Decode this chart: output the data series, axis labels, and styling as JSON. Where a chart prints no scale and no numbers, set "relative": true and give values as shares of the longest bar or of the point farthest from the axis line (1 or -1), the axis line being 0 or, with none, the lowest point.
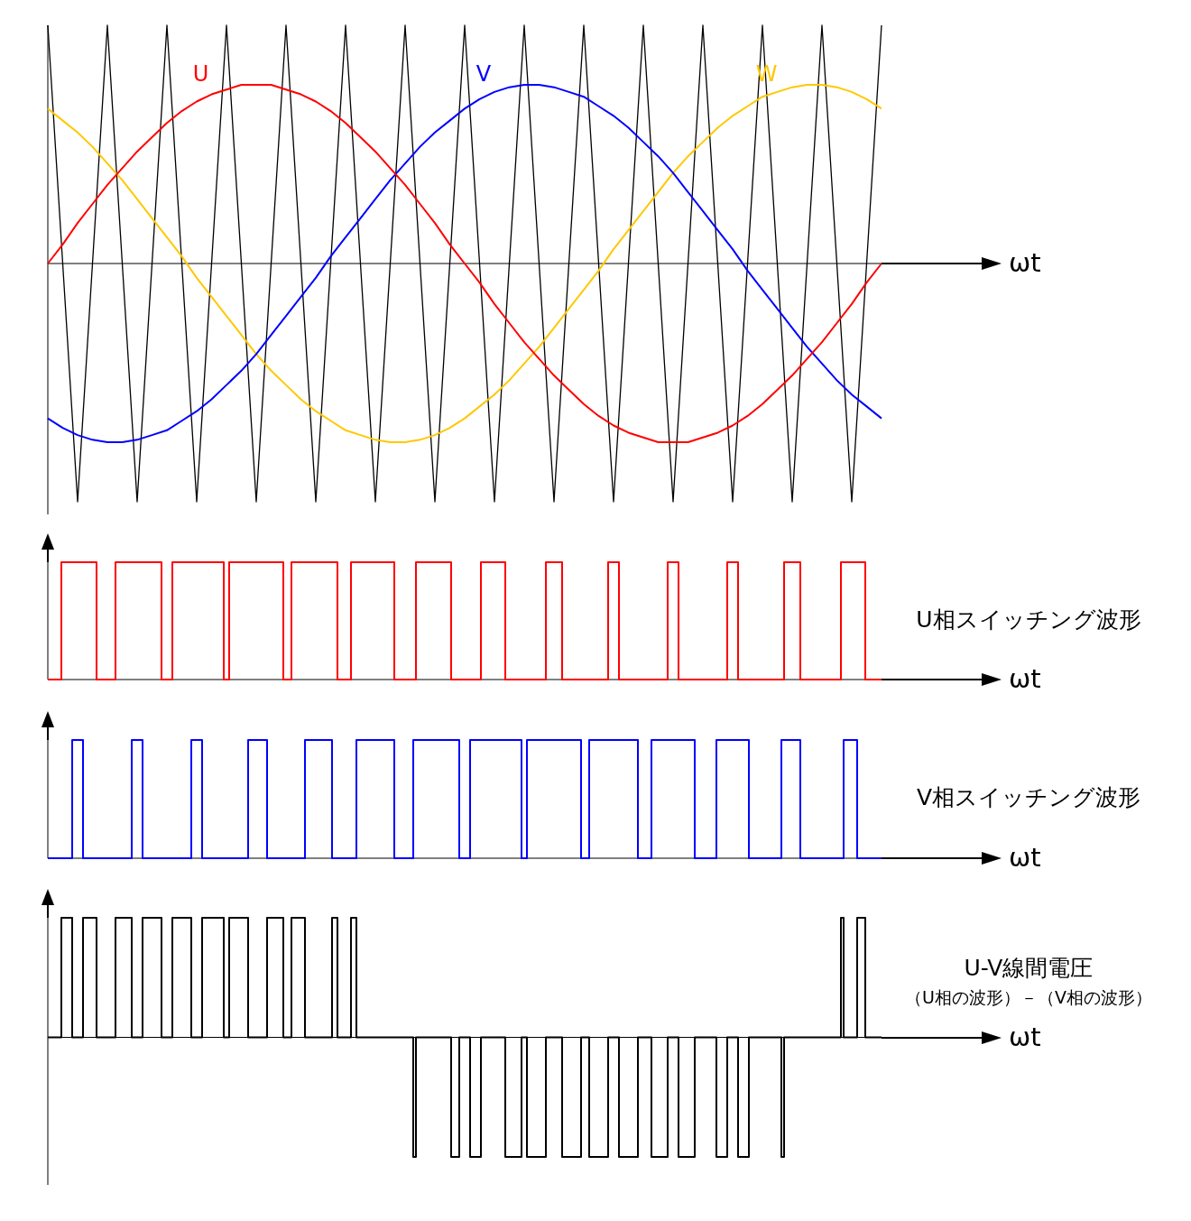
{
  "chart_data": [
    {
      "type": "line",
      "relative": true,
      "xlabel": "ωt",
      "categories": [
        null,
        null,
        null,
        null,
        null,
        null,
        null,
        null,
        null,
        null,
        null,
        null,
        null,
        null,
        null,
        null,
        null,
        null,
        null,
        null,
        null,
        null,
        null,
        null,
        null,
        null,
        null,
        null,
        null,
        null,
        null,
        null,
        null,
        null,
        null,
        null,
        null,
        null,
        null,
        null,
        null,
        null,
        null,
        null,
        null,
        null,
        null,
        null,
        null,
        null,
        null,
        null,
        null,
        null,
        null,
        null,
        null
      ],
      "series": [
        {
          "name": "U",
          "color": "#ff0000",
          "values": [
            0,
            0.08,
            0.17,
            0.25,
            0.33,
            0.4,
            0.47,
            0.53,
            0.59,
            0.64,
            0.68,
            0.71,
            0.73,
            0.75,
            0.75,
            0.75,
            0.73,
            0.71,
            0.68,
            0.64,
            0.59,
            0.53,
            0.47,
            0.4,
            0.33,
            0.25,
            0.17,
            0.08,
            0,
            -0.08,
            -0.17,
            -0.25,
            -0.33,
            -0.4,
            -0.47,
            -0.53,
            -0.59,
            -0.64,
            -0.68,
            -0.71,
            -0.73,
            -0.75,
            -0.75,
            -0.75,
            -0.73,
            -0.71,
            -0.68,
            -0.64,
            -0.59,
            -0.53,
            -0.47,
            -0.4,
            -0.33,
            -0.25,
            -0.17,
            -0.08,
            0
          ]
        },
        {
          "name": "V",
          "color": "#0000ff",
          "values": [
            -0.65,
            -0.69,
            -0.72,
            -0.74,
            -0.75,
            -0.75,
            -0.74,
            -0.72,
            -0.7,
            -0.66,
            -0.62,
            -0.57,
            -0.51,
            -0.45,
            -0.38,
            -0.3,
            -0.22,
            -0.14,
            -0.06,
            0.03,
            0.11,
            0.19,
            0.27,
            0.35,
            0.42,
            0.49,
            0.55,
            0.6,
            0.65,
            0.69,
            0.72,
            0.74,
            0.75,
            0.75,
            0.74,
            0.72,
            0.7,
            0.66,
            0.62,
            0.57,
            0.51,
            0.45,
            0.38,
            0.3,
            0.22,
            0.14,
            0.06,
            -0.03,
            -0.11,
            -0.19,
            -0.27,
            -0.35,
            -0.42,
            -0.49,
            -0.55,
            -0.6,
            -0.65
          ]
        },
        {
          "name": "W",
          "color": "#ffc800",
          "values": [
            0.65,
            0.6,
            0.55,
            0.49,
            0.42,
            0.35,
            0.27,
            0.19,
            0.11,
            0.03,
            -0.06,
            -0.14,
            -0.22,
            -0.3,
            -0.38,
            -0.45,
            -0.51,
            -0.57,
            -0.62,
            -0.66,
            -0.7,
            -0.72,
            -0.74,
            -0.75,
            -0.75,
            -0.74,
            -0.72,
            -0.69,
            -0.65,
            -0.6,
            -0.55,
            -0.49,
            -0.42,
            -0.35,
            -0.27,
            -0.19,
            -0.11,
            -0.03,
            0.06,
            0.14,
            0.22,
            0.3,
            0.38,
            0.45,
            0.51,
            0.57,
            0.62,
            0.66,
            0.7,
            0.72,
            0.74,
            0.75,
            0.75,
            0.74,
            0.72,
            0.69,
            0.65
          ]
        },
        {
          "color": "#000000",
          "values": [
            1,
            0,
            -1,
            0,
            1,
            0,
            -1,
            0,
            1,
            0,
            -1,
            0,
            1,
            0,
            -1,
            0,
            1,
            0,
            -1,
            0,
            1,
            0,
            -1,
            0,
            1,
            0,
            -1,
            0,
            1,
            0,
            -1,
            0,
            1,
            0,
            -1,
            0,
            1,
            0,
            -1,
            0,
            1,
            0,
            -1,
            0,
            1,
            0,
            -1,
            0,
            1,
            0,
            -1,
            0,
            1,
            0,
            -1,
            0,
            1
          ]
        }
      ]
    },
    {
      "type": "step",
      "relative": true,
      "xlabel": "ωt",
      "categories": [
        null,
        null,
        null,
        null,
        null,
        null,
        null,
        null,
        null,
        null,
        null,
        null,
        null,
        null,
        null,
        null,
        null,
        null,
        null,
        null,
        null,
        null,
        null,
        null,
        null,
        null,
        null,
        null,
        null,
        null,
        null,
        null,
        null,
        null,
        null,
        null,
        null,
        null,
        null,
        null,
        null,
        null,
        null,
        null,
        null,
        null,
        null,
        null,
        null,
        null,
        null,
        null,
        null,
        null,
        null,
        null,
        null,
        null,
        null,
        null,
        null,
        null,
        null,
        null,
        null,
        null,
        null,
        null,
        null,
        null,
        null,
        null,
        null,
        null,
        null,
        null,
        null,
        null,
        null,
        null,
        null,
        null,
        null,
        null,
        null,
        null,
        null,
        null,
        null,
        null,
        null,
        null,
        null,
        null,
        null,
        null,
        null,
        null,
        null,
        null,
        null,
        null,
        null,
        null,
        null,
        null,
        null,
        null,
        null,
        null,
        null,
        null,
        null,
        null,
        null,
        null,
        null,
        null,
        null,
        null,
        null,
        null,
        null,
        null,
        null,
        null,
        null,
        null,
        null,
        null,
        null,
        null,
        null,
        null,
        null,
        null,
        null,
        null,
        null,
        null,
        null,
        null,
        null,
        null,
        null,
        null,
        null,
        null,
        null,
        null,
        null,
        null,
        null,
        null,
        null,
        null,
        null,
        null,
        null,
        null,
        null,
        null,
        null,
        null,
        null,
        null,
        null,
        null,
        null,
        null,
        null,
        null,
        null,
        null,
        null,
        null,
        null,
        null,
        null,
        null,
        null,
        null,
        null,
        null,
        null,
        null,
        null,
        null,
        null,
        null,
        null,
        null,
        null,
        null,
        null,
        null,
        null,
        null,
        null,
        null,
        null,
        null,
        null,
        null,
        null,
        null,
        null,
        null,
        null,
        null,
        null,
        null,
        null,
        null,
        null,
        null,
        null,
        null,
        null,
        null,
        null,
        null,
        null,
        null,
        null,
        null,
        null,
        null,
        null,
        null,
        null,
        null,
        null,
        null,
        null,
        null,
        null,
        null,
        null,
        null,
        null,
        null,
        null,
        null,
        null,
        null,
        null,
        null,
        null,
        null,
        null,
        null,
        null,
        null,
        null,
        null,
        null,
        null,
        null,
        null,
        null,
        null,
        null,
        null,
        null,
        null,
        null,
        null,
        null,
        null,
        null,
        null,
        null,
        null,
        null,
        null,
        null,
        null,
        null,
        null,
        null,
        null,
        null,
        null,
        null,
        null,
        null,
        null,
        null,
        null,
        null,
        null,
        null,
        null,
        null,
        null,
        null,
        null,
        null,
        null,
        null,
        null,
        null,
        null,
        null,
        null,
        null,
        null,
        null
      ],
      "series": [
        {
          "name": "U相スイッチング波形",
          "color": "#ff0000",
          "values": [
            0,
            0,
            0,
            0,
            0,
            1,
            1,
            1,
            1,
            1,
            1,
            1,
            1,
            1,
            1,
            1,
            1,
            1,
            0,
            0,
            0,
            0,
            0,
            0,
            0,
            1,
            1,
            1,
            1,
            1,
            1,
            1,
            1,
            1,
            1,
            1,
            1,
            1,
            1,
            1,
            1,
            1,
            0,
            0,
            0,
            0,
            1,
            1,
            1,
            1,
            1,
            1,
            1,
            1,
            1,
            1,
            1,
            1,
            1,
            1,
            1,
            1,
            1,
            1,
            1,
            0,
            0,
            1,
            1,
            1,
            1,
            1,
            1,
            1,
            1,
            1,
            1,
            1,
            1,
            1,
            1,
            1,
            1,
            1,
            1,
            1,
            1,
            0,
            0,
            0,
            1,
            1,
            1,
            1,
            1,
            1,
            1,
            1,
            1,
            1,
            1,
            1,
            1,
            1,
            1,
            1,
            1,
            0,
            0,
            0,
            0,
            0,
            1,
            1,
            1,
            1,
            1,
            1,
            1,
            1,
            1,
            1,
            1,
            1,
            1,
            1,
            1,
            1,
            0,
            0,
            0,
            0,
            0,
            0,
            0,
            0,
            1,
            1,
            1,
            1,
            1,
            1,
            1,
            1,
            1,
            1,
            1,
            1,
            1,
            0,
            0,
            0,
            0,
            0,
            0,
            0,
            0,
            0,
            0,
            0,
            1,
            1,
            1,
            1,
            1,
            1,
            1,
            1,
            1,
            0,
            0,
            0,
            0,
            0,
            0,
            0,
            0,
            0,
            0,
            0,
            0,
            0,
            0,
            0,
            1,
            1,
            1,
            1,
            1,
            1,
            0,
            0,
            0,
            0,
            0,
            0,
            0,
            0,
            0,
            0,
            0,
            0,
            0,
            0,
            0,
            0,
            0,
            1,
            1,
            1,
            1,
            0,
            0,
            0,
            0,
            0,
            0,
            0,
            0,
            0,
            0,
            0,
            0,
            0,
            0,
            0,
            0,
            0,
            0,
            1,
            1,
            1,
            1,
            0,
            0,
            0,
            0,
            0,
            0,
            0,
            0,
            0,
            0,
            0,
            0,
            0,
            0,
            0,
            0,
            0,
            0,
            1,
            1,
            1,
            1,
            0,
            0,
            0,
            0,
            0,
            0,
            0,
            0,
            0,
            0,
            0,
            0,
            0,
            0,
            0,
            0,
            0,
            1,
            1,
            1,
            1,
            1,
            1,
            0,
            0,
            0,
            0,
            0,
            0,
            0,
            0,
            0,
            0,
            0,
            0,
            0,
            0,
            0,
            1,
            1,
            1,
            1,
            1,
            1,
            1,
            1,
            1,
            0,
            0,
            0,
            0,
            0,
            0,
            0
          ]
        }
      ]
    },
    {
      "type": "step",
      "relative": true,
      "xlabel": "ωt",
      "categories": [
        null,
        null,
        null,
        null,
        null,
        null,
        null,
        null,
        null,
        null,
        null,
        null,
        null,
        null,
        null,
        null,
        null,
        null,
        null,
        null,
        null,
        null,
        null,
        null,
        null,
        null,
        null,
        null,
        null,
        null,
        null,
        null,
        null,
        null,
        null,
        null,
        null,
        null,
        null,
        null,
        null,
        null,
        null,
        null,
        null,
        null,
        null,
        null,
        null,
        null,
        null,
        null,
        null,
        null,
        null,
        null,
        null,
        null,
        null,
        null,
        null,
        null,
        null,
        null,
        null,
        null,
        null,
        null,
        null,
        null,
        null,
        null,
        null,
        null,
        null,
        null,
        null,
        null,
        null,
        null,
        null,
        null,
        null,
        null,
        null,
        null,
        null,
        null,
        null,
        null,
        null,
        null,
        null,
        null,
        null,
        null,
        null,
        null,
        null,
        null,
        null,
        null,
        null,
        null,
        null,
        null,
        null,
        null,
        null,
        null,
        null,
        null,
        null,
        null,
        null,
        null,
        null,
        null,
        null,
        null,
        null,
        null,
        null,
        null,
        null,
        null,
        null,
        null,
        null,
        null,
        null,
        null,
        null,
        null,
        null,
        null,
        null,
        null,
        null,
        null,
        null,
        null,
        null,
        null,
        null,
        null,
        null,
        null,
        null,
        null,
        null,
        null,
        null,
        null,
        null,
        null,
        null,
        null,
        null,
        null,
        null,
        null,
        null,
        null,
        null,
        null,
        null,
        null,
        null,
        null,
        null,
        null,
        null,
        null,
        null,
        null,
        null,
        null,
        null,
        null,
        null,
        null,
        null,
        null,
        null,
        null,
        null,
        null,
        null,
        null,
        null,
        null,
        null,
        null,
        null,
        null,
        null,
        null,
        null,
        null,
        null,
        null,
        null,
        null,
        null,
        null,
        null,
        null,
        null,
        null,
        null,
        null,
        null,
        null,
        null,
        null,
        null,
        null,
        null,
        null,
        null,
        null,
        null,
        null,
        null,
        null,
        null,
        null,
        null,
        null,
        null,
        null,
        null,
        null,
        null,
        null,
        null,
        null,
        null,
        null,
        null,
        null,
        null,
        null,
        null,
        null,
        null,
        null,
        null,
        null,
        null,
        null,
        null,
        null,
        null,
        null,
        null,
        null,
        null,
        null,
        null,
        null,
        null,
        null,
        null,
        null,
        null,
        null,
        null,
        null,
        null,
        null,
        null,
        null,
        null,
        null,
        null,
        null,
        null,
        null,
        null,
        null,
        null,
        null,
        null,
        null,
        null,
        null,
        null,
        null,
        null,
        null,
        null,
        null,
        null,
        null,
        null,
        null,
        null,
        null,
        null,
        null,
        null,
        null,
        null,
        null,
        null,
        null,
        null
      ],
      "series": [
        {
          "name": "V相スイッチング波形",
          "color": "#0000ff",
          "values": [
            0,
            0,
            0,
            0,
            0,
            0,
            0,
            0,
            0,
            1,
            1,
            1,
            1,
            0,
            0,
            0,
            0,
            0,
            0,
            0,
            0,
            0,
            0,
            0,
            0,
            0,
            0,
            0,
            0,
            0,
            0,
            1,
            1,
            1,
            1,
            0,
            0,
            0,
            0,
            0,
            0,
            0,
            0,
            0,
            0,
            0,
            0,
            0,
            0,
            0,
            0,
            0,
            0,
            1,
            1,
            1,
            1,
            0,
            0,
            0,
            0,
            0,
            0,
            0,
            0,
            0,
            0,
            0,
            0,
            0,
            0,
            0,
            0,
            0,
            1,
            1,
            1,
            1,
            1,
            1,
            1,
            0,
            0,
            0,
            0,
            0,
            0,
            0,
            0,
            0,
            0,
            0,
            0,
            0,
            0,
            1,
            1,
            1,
            1,
            1,
            1,
            1,
            1,
            1,
            1,
            0,
            0,
            0,
            0,
            0,
            0,
            0,
            0,
            0,
            1,
            1,
            1,
            1,
            1,
            1,
            1,
            1,
            1,
            1,
            1,
            1,
            1,
            1,
            0,
            0,
            0,
            0,
            0,
            0,
            0,
            1,
            1,
            1,
            1,
            1,
            1,
            1,
            1,
            1,
            1,
            1,
            1,
            1,
            1,
            1,
            1,
            1,
            0,
            0,
            0,
            0,
            1,
            1,
            1,
            1,
            1,
            1,
            1,
            1,
            1,
            1,
            1,
            1,
            1,
            1,
            1,
            1,
            1,
            1,
            1,
            0,
            0,
            1,
            1,
            1,
            1,
            1,
            1,
            1,
            1,
            1,
            1,
            1,
            1,
            1,
            1,
            1,
            1,
            1,
            1,
            1,
            1,
            0,
            0,
            0,
            1,
            1,
            1,
            1,
            1,
            1,
            1,
            1,
            1,
            1,
            1,
            1,
            1,
            1,
            1,
            1,
            1,
            1,
            0,
            0,
            0,
            0,
            0,
            1,
            1,
            1,
            1,
            1,
            1,
            1,
            1,
            1,
            1,
            1,
            1,
            1,
            1,
            1,
            1,
            0,
            0,
            0,
            0,
            0,
            0,
            0,
            0,
            1,
            1,
            1,
            1,
            1,
            1,
            1,
            1,
            1,
            1,
            1,
            1,
            0,
            0,
            0,
            0,
            0,
            0,
            0,
            0,
            0,
            0,
            0,
            0,
            1,
            1,
            1,
            1,
            1,
            1,
            1,
            0,
            0,
            0,
            0,
            0,
            0,
            0,
            0,
            0,
            0,
            0,
            0,
            0,
            0,
            0,
            0,
            1,
            1,
            1,
            1,
            1,
            0,
            0,
            0,
            0,
            0,
            0,
            0,
            0,
            0,
            0
          ]
        }
      ]
    },
    {
      "type": "step",
      "relative": true,
      "xlabel": "ωt",
      "annotations": [
        "（U相の波形）－（V相の波形）"
      ],
      "categories": [
        null,
        null,
        null,
        null,
        null,
        null,
        null,
        null,
        null,
        null,
        null,
        null,
        null,
        null,
        null,
        null,
        null,
        null,
        null,
        null,
        null,
        null,
        null,
        null,
        null,
        null,
        null,
        null,
        null,
        null,
        null,
        null,
        null,
        null,
        null,
        null,
        null,
        null,
        null,
        null,
        null,
        null,
        null,
        null,
        null,
        null,
        null,
        null,
        null,
        null,
        null,
        null,
        null,
        null,
        null,
        null,
        null,
        null,
        null,
        null,
        null,
        null,
        null,
        null,
        null,
        null,
        null,
        null,
        null,
        null,
        null,
        null,
        null,
        null,
        null,
        null,
        null,
        null,
        null,
        null,
        null,
        null,
        null,
        null,
        null,
        null,
        null,
        null,
        null,
        null,
        null,
        null,
        null,
        null,
        null,
        null,
        null,
        null,
        null,
        null,
        null,
        null,
        null,
        null,
        null,
        null,
        null,
        null,
        null,
        null,
        null,
        null,
        null,
        null,
        null,
        null,
        null,
        null,
        null,
        null,
        null,
        null,
        null,
        null,
        null,
        null,
        null,
        null,
        null,
        null,
        null,
        null,
        null,
        null,
        null,
        null,
        null,
        null,
        null,
        null,
        null,
        null,
        null,
        null,
        null,
        null,
        null,
        null,
        null,
        null,
        null,
        null,
        null,
        null,
        null,
        null,
        null,
        null,
        null,
        null,
        null,
        null,
        null,
        null,
        null,
        null,
        null,
        null,
        null,
        null,
        null,
        null,
        null,
        null,
        null,
        null,
        null,
        null,
        null,
        null,
        null,
        null,
        null,
        null,
        null,
        null,
        null,
        null,
        null,
        null,
        null,
        null,
        null,
        null,
        null,
        null,
        null,
        null,
        null,
        null,
        null,
        null,
        null,
        null,
        null,
        null,
        null,
        null,
        null,
        null,
        null,
        null,
        null,
        null,
        null,
        null,
        null,
        null,
        null,
        null,
        null,
        null,
        null,
        null,
        null,
        null,
        null,
        null,
        null,
        null,
        null,
        null,
        null,
        null,
        null,
        null,
        null,
        null,
        null,
        null,
        null,
        null,
        null,
        null,
        null,
        null,
        null,
        null,
        null,
        null,
        null,
        null,
        null,
        null,
        null,
        null,
        null,
        null,
        null,
        null,
        null,
        null,
        null,
        null,
        null,
        null,
        null,
        null,
        null,
        null,
        null,
        null,
        null,
        null,
        null,
        null,
        null,
        null,
        null,
        null,
        null,
        null,
        null,
        null,
        null,
        null,
        null,
        null,
        null,
        null,
        null,
        null,
        null,
        null,
        null,
        null,
        null,
        null,
        null,
        null,
        null,
        null,
        null,
        null,
        null,
        null,
        null,
        null,
        null
      ],
      "series": [
        {
          "name": "U-V線間電圧",
          "color": "#000000",
          "values": [
            0,
            0,
            0,
            0,
            0,
            1,
            1,
            1,
            1,
            0,
            0,
            0,
            0,
            1,
            1,
            1,
            1,
            1,
            0,
            0,
            0,
            0,
            0,
            0,
            0,
            1,
            1,
            1,
            1,
            1,
            1,
            0,
            0,
            0,
            0,
            1,
            1,
            1,
            1,
            1,
            1,
            1,
            0,
            0,
            0,
            0,
            1,
            1,
            1,
            1,
            1,
            1,
            1,
            0,
            0,
            0,
            0,
            1,
            1,
            1,
            1,
            1,
            1,
            1,
            1,
            0,
            0,
            1,
            1,
            1,
            1,
            1,
            1,
            1,
            0,
            0,
            0,
            0,
            0,
            0,
            0,
            1,
            1,
            1,
            1,
            1,
            1,
            0,
            0,
            0,
            1,
            1,
            1,
            1,
            1,
            0,
            0,
            0,
            0,
            0,
            0,
            0,
            0,
            0,
            0,
            1,
            1,
            0,
            0,
            0,
            0,
            0,
            1,
            1,
            0,
            0,
            0,
            0,
            0,
            0,
            0,
            0,
            0,
            0,
            0,
            0,
            0,
            0,
            0,
            0,
            0,
            0,
            0,
            0,
            0,
            -1,
            0,
            0,
            0,
            0,
            0,
            0,
            0,
            0,
            0,
            0,
            0,
            0,
            0,
            -1,
            -1,
            -1,
            0,
            0,
            0,
            0,
            -1,
            -1,
            -1,
            -1,
            0,
            0,
            0,
            0,
            0,
            0,
            0,
            0,
            0,
            -1,
            -1,
            -1,
            -1,
            -1,
            -1,
            0,
            0,
            -1,
            -1,
            -1,
            -1,
            -1,
            -1,
            -1,
            0,
            0,
            0,
            0,
            0,
            0,
            -1,
            -1,
            -1,
            -1,
            -1,
            -1,
            -1,
            0,
            0,
            0,
            -1,
            -1,
            -1,
            -1,
            -1,
            -1,
            -1,
            0,
            0,
            0,
            0,
            -1,
            -1,
            -1,
            -1,
            -1,
            -1,
            -1,
            0,
            0,
            0,
            0,
            0,
            -1,
            -1,
            -1,
            -1,
            -1,
            -1,
            0,
            0,
            0,
            0,
            -1,
            -1,
            -1,
            -1,
            -1,
            -1,
            0,
            0,
            0,
            0,
            0,
            0,
            0,
            0,
            -1,
            -1,
            -1,
            -1,
            0,
            0,
            0,
            0,
            -1,
            -1,
            -1,
            -1,
            0,
            0,
            0,
            0,
            0,
            0,
            0,
            0,
            0,
            0,
            0,
            0,
            -1,
            0,
            0,
            0,
            0,
            0,
            0,
            0,
            0,
            0,
            0,
            0,
            0,
            0,
            0,
            0,
            0,
            0,
            0,
            0,
            0,
            0,
            1,
            0,
            0,
            0,
            0,
            0,
            1,
            1,
            1,
            0,
            0,
            0,
            0,
            0,
            0,
            0
          ]
        }
      ]
    }
  ]
}
